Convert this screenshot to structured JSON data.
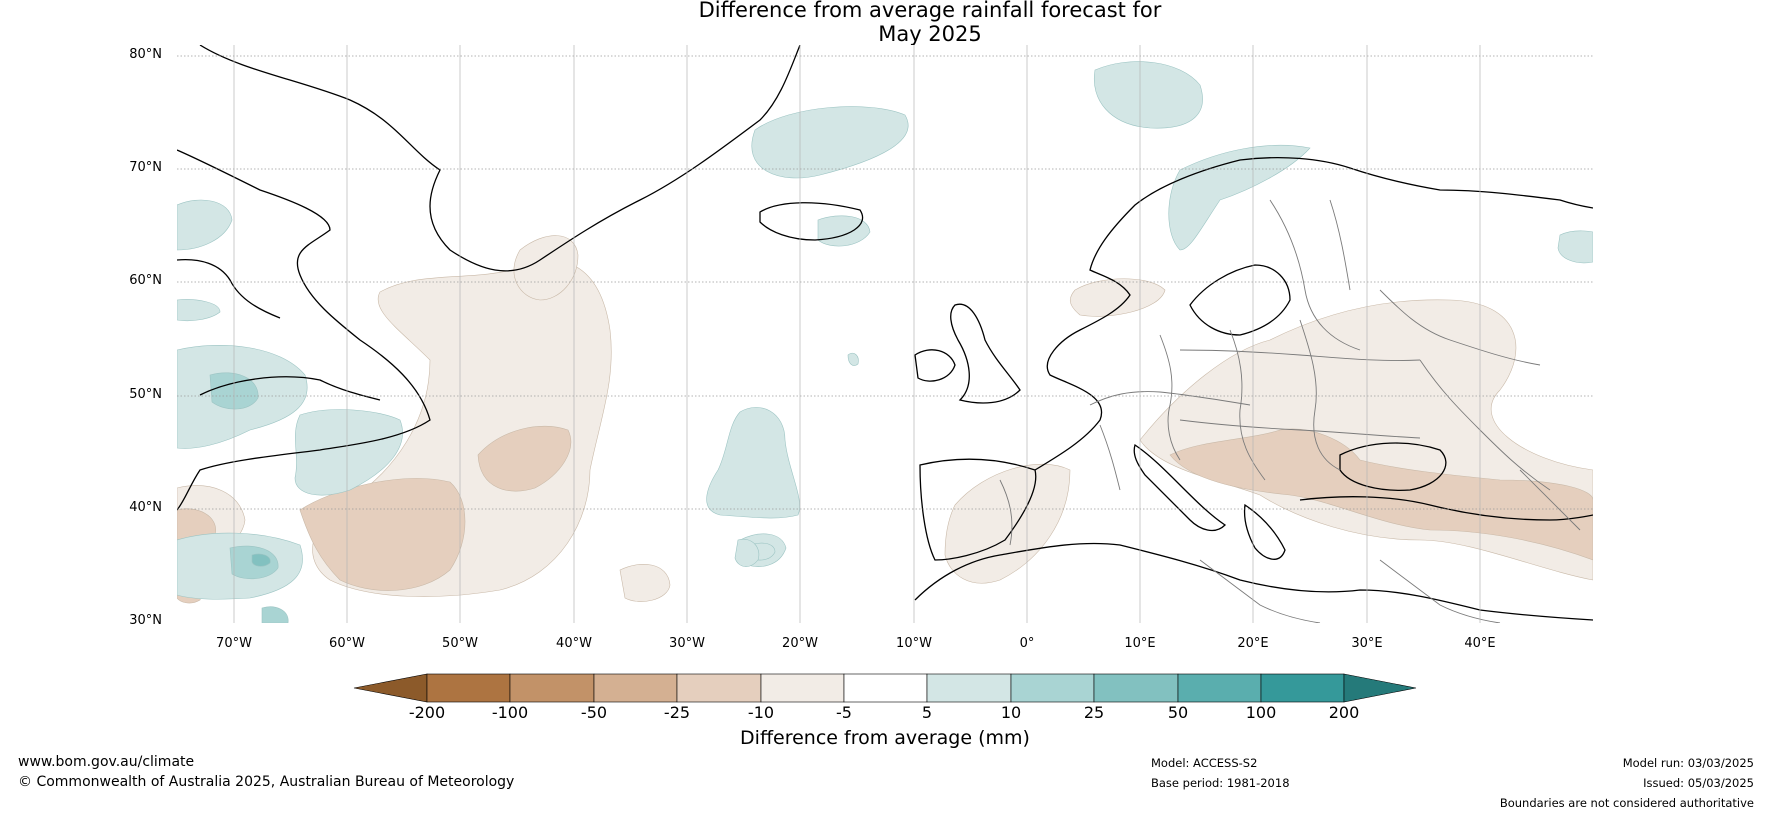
{
  "title_line1": "Difference from average rainfall forecast for",
  "title_line2": "May 2025",
  "map": {
    "region": "North Atlantic and Europe",
    "lat_range": [
      30,
      80
    ],
    "lon_range": [
      -75,
      50
    ],
    "lat_labels": [
      "80°N",
      "70°N",
      "60°N",
      "50°N",
      "40°N",
      "30°N"
    ],
    "lon_labels": [
      "70°W",
      "60°W",
      "50°W",
      "40°W",
      "30°W",
      "20°W",
      "10°W",
      "0°",
      "10°E",
      "20°E",
      "30°E",
      "40°E"
    ]
  },
  "colorbar": {
    "title": "Difference from average (mm)",
    "labels": [
      "-200",
      "-100",
      "-50",
      "-25",
      "-10",
      "-5",
      "5",
      "10",
      "25",
      "50",
      "100",
      "200"
    ],
    "colors": [
      "#8c5a2a",
      "#ad7441",
      "#c29268",
      "#d4b092",
      "#e5cfbe",
      "#f2ece6",
      "#ffffff",
      "#d3e6e5",
      "#a9d4d3",
      "#82c1c0",
      "#5aaeae",
      "#35999a",
      "#257a7a"
    ]
  },
  "footer": {
    "website": "www.bom.gov.au/climate",
    "copyright": "© Commonwealth of Australia 2025, Australian Bureau of Meteorology",
    "model": "Model: ACCESS-S2",
    "base_period": "Base period: 1981-2018",
    "model_run": "Model run: 03/03/2025",
    "issued": "Issued: 05/03/2025",
    "disclaimer": "Boundaries are not considered authoritative"
  }
}
